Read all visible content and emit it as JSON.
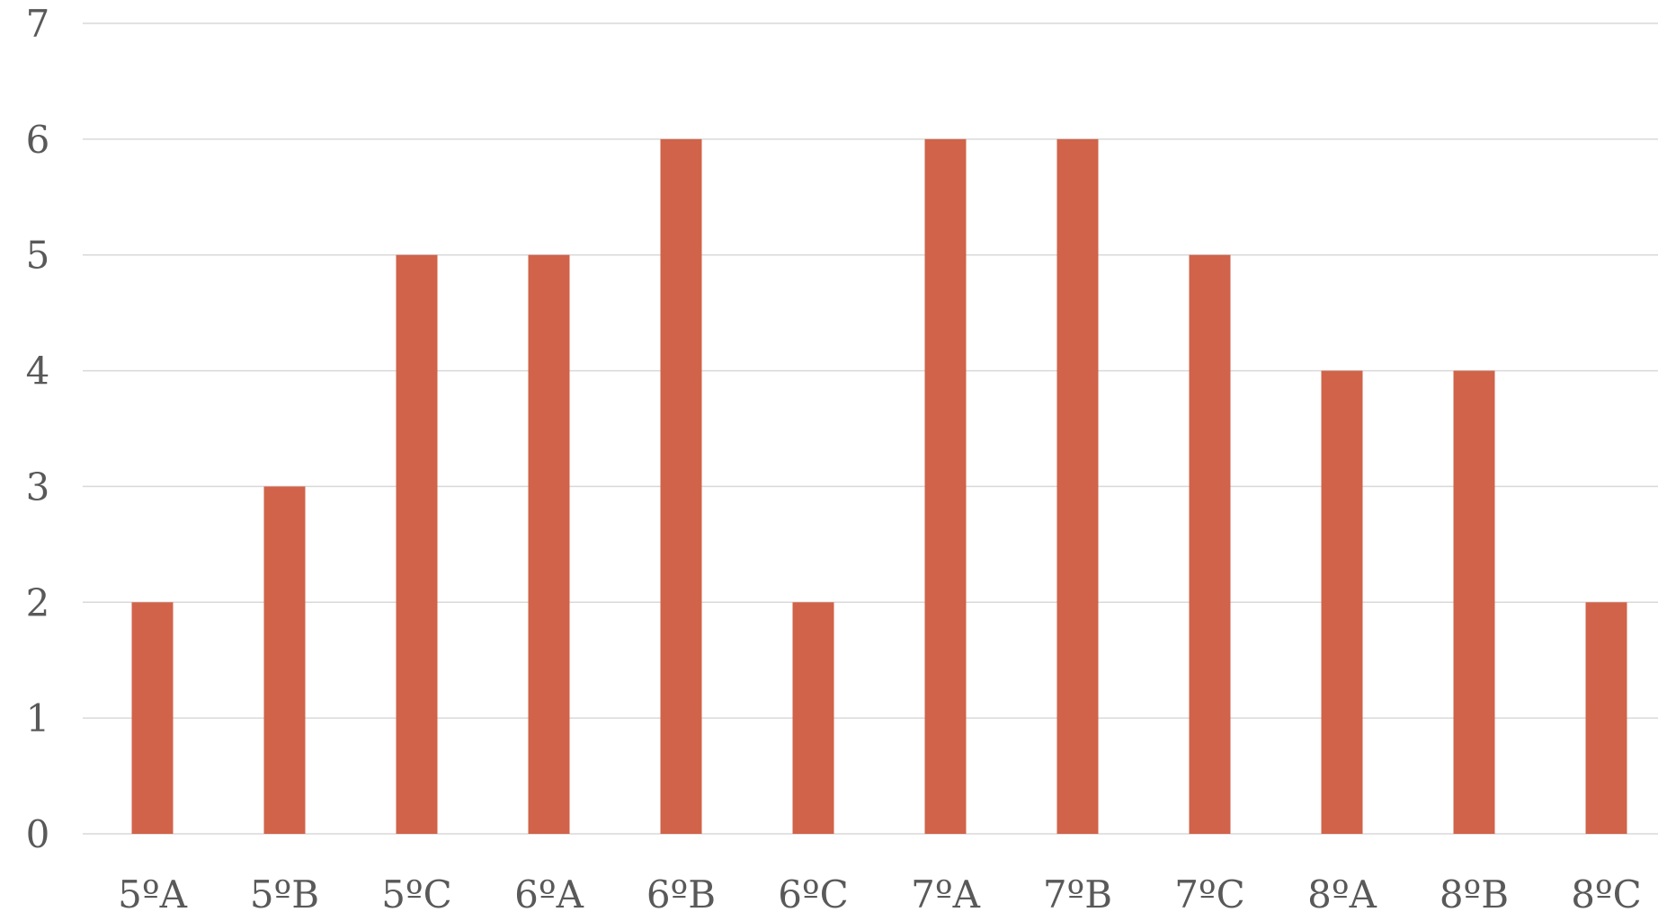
{
  "chart_data": {
    "type": "bar",
    "categories": [
      "5ºA",
      "5ºB",
      "5ºC",
      "6ºA",
      "6ºB",
      "6ºC",
      "7ºA",
      "7ºB",
      "7ºC",
      "8ºA",
      "8ºB",
      "8ºC"
    ],
    "values": [
      2,
      3,
      5,
      5,
      6,
      2,
      6,
      6,
      5,
      4,
      4,
      2
    ],
    "title": "",
    "xlabel": "",
    "ylabel": "",
    "ylim": [
      0,
      7
    ],
    "yticks": [
      "0",
      "1",
      "2",
      "3",
      "4",
      "5",
      "6",
      "7"
    ],
    "grid": "horizontal",
    "legend": "none",
    "colors": {
      "bar": "#d06349",
      "grid": "#d9d9d9",
      "text": "#595959"
    }
  }
}
